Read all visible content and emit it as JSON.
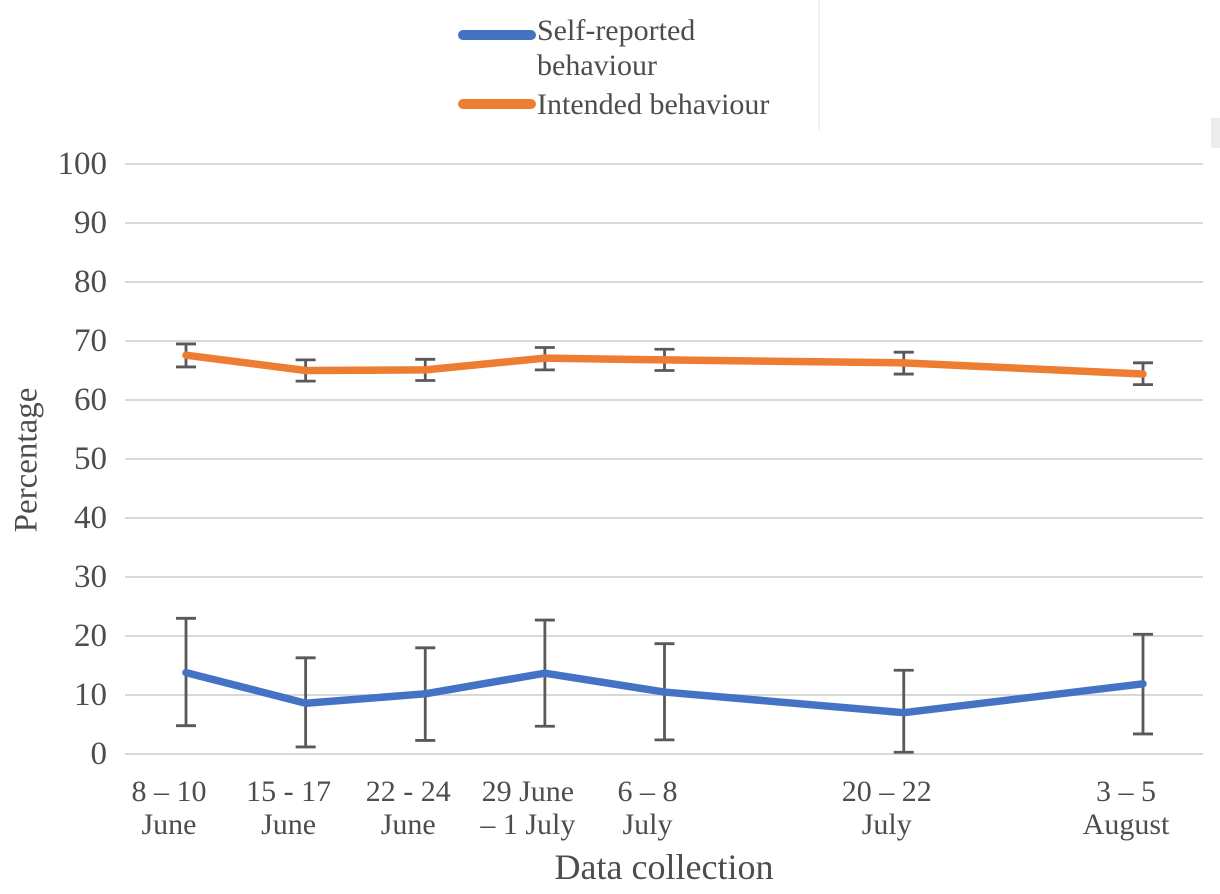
{
  "chart_data": {
    "type": "line",
    "title": "",
    "xlabel": "Data collection",
    "ylabel": "Percentage",
    "ylim": [
      0,
      100
    ],
    "ytick_interval": 10,
    "y_ticks": [
      100,
      90,
      80,
      70,
      60,
      50,
      40,
      30,
      20,
      10,
      0
    ],
    "categories": [
      "8 – 10 June",
      "15 - 17 June",
      "22 - 24 June",
      "29 June – 1 July",
      "6 – 8 July",
      "20 – 22 July",
      "3 – 5 August"
    ],
    "category_label_lines": [
      [
        "8 – 10",
        "June"
      ],
      [
        "15 - 17",
        "June"
      ],
      [
        "22 - 24",
        "June"
      ],
      [
        "29 June",
        "– 1 July"
      ],
      [
        "6 – 8",
        "July"
      ],
      [
        "20 – 22",
        "July"
      ],
      [
        "3 – 5",
        "August"
      ]
    ],
    "x_days_from_first": [
      0,
      7,
      14,
      21,
      28,
      42,
      56
    ],
    "grid": true,
    "legend_position": "top-center",
    "error_bars": true,
    "series": [
      {
        "name": "Self-reported behaviour",
        "color": "#4472C4",
        "values": [
          13.8,
          8.6,
          10.2,
          13.7,
          10.5,
          7.0,
          11.9
        ],
        "err_low": [
          4.8,
          1.2,
          2.3,
          4.7,
          2.4,
          0.3,
          3.4
        ],
        "err_high": [
          23.0,
          16.3,
          18.0,
          22.7,
          18.7,
          14.2,
          20.3
        ]
      },
      {
        "name": "Intended behaviour",
        "color": "#ED7D31",
        "values": [
          67.6,
          65.0,
          65.1,
          67.1,
          66.8,
          66.3,
          64.4
        ],
        "err_low": [
          65.6,
          63.2,
          63.3,
          65.1,
          65.0,
          64.4,
          62.6
        ],
        "err_high": [
          69.5,
          66.8,
          66.9,
          68.9,
          68.6,
          68.1,
          66.3
        ]
      }
    ]
  },
  "legend": {
    "items": [
      {
        "label_lines": [
          "Self-reported",
          "behaviour"
        ],
        "color": "#4472C4"
      },
      {
        "label_lines": [
          "Intended behaviour"
        ],
        "color": "#ED7D31"
      }
    ]
  },
  "styles": {
    "gridline_color": "#D9D9D9",
    "error_bar_color": "#595959",
    "text_color": "#4d4d4d",
    "background": "#FFFFFF"
  }
}
